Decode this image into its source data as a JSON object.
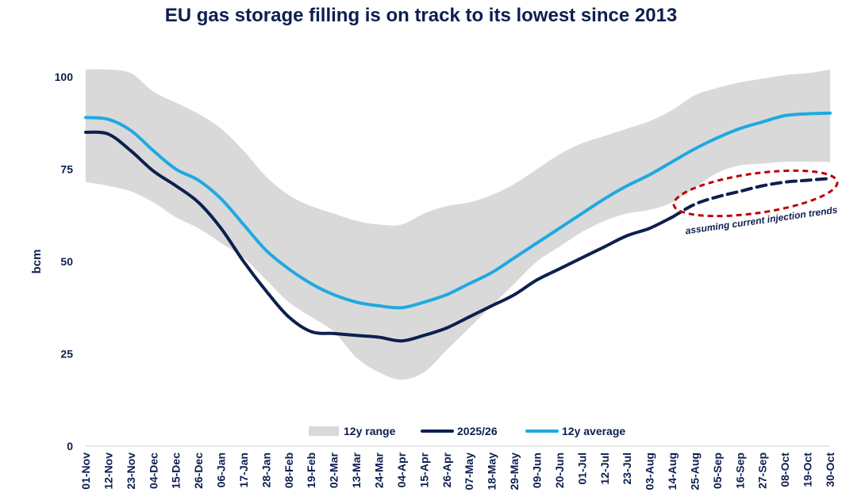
{
  "chart_data": {
    "type": "line",
    "title": "EU gas storage filling is on track to its lowest since 2013",
    "xlabel": "",
    "ylabel": "bcm",
    "ylim": [
      0,
      100
    ],
    "yticks": [
      "0",
      "25",
      "50",
      "75",
      "100"
    ],
    "categories": [
      "01-Nov",
      "12-Nov",
      "23-Nov",
      "04-Dec",
      "15-Dec",
      "26-Dec",
      "06-Jan",
      "17-Jan",
      "28-Jan",
      "08-Feb",
      "19-Feb",
      "02-Mar",
      "13-Mar",
      "24-Mar",
      "04-Apr",
      "15-Apr",
      "26-Apr",
      "07-May",
      "18-May",
      "29-May",
      "09-Jun",
      "20-Jun",
      "01-Jul",
      "12-Jul",
      "23-Jul",
      "03-Aug",
      "14-Aug",
      "25-Aug",
      "05-Sep",
      "16-Sep",
      "27-Sep",
      "08-Oct",
      "19-Oct",
      "30-Oct"
    ],
    "grid": false,
    "legend_position": "bottom",
    "legend": [
      "12y range",
      "2025/26",
      "12y average"
    ],
    "colors": {
      "range": "#d9d9d9",
      "current": "#0d1f4f",
      "average": "#1fa9e1",
      "ellipse": "#c00000"
    },
    "series": [
      {
        "name": "12y range",
        "type": "band",
        "low": [
          71.5,
          70.5,
          69,
          66,
          62,
          59,
          55,
          51,
          45,
          39,
          35,
          31,
          24,
          20,
          18,
          20,
          26,
          32,
          38,
          44,
          50,
          54,
          58,
          61,
          63,
          64,
          66,
          70,
          74,
          76,
          76.5,
          77,
          77,
          77
        ],
        "high": [
          102,
          102,
          101,
          96,
          93,
          90,
          86,
          80,
          73,
          68,
          65,
          63,
          61,
          60,
          60,
          63,
          65,
          66,
          68,
          71,
          75,
          79,
          82,
          84,
          86,
          88,
          91,
          95,
          97,
          98.5,
          99.5,
          100.5,
          101,
          102
        ]
      },
      {
        "name": "2025/26",
        "values": [
          85,
          84.5,
          80,
          74.5,
          70.5,
          66,
          59,
          50,
          42,
          35,
          31,
          30.5,
          30,
          29.5,
          28.5,
          30,
          32,
          35,
          38,
          41,
          45,
          48,
          51,
          54,
          57,
          59,
          62,
          null,
          null,
          null,
          null,
          null,
          null,
          null
        ]
      },
      {
        "name": "2025/26 projection",
        "style": "dashed",
        "values": [
          null,
          null,
          null,
          null,
          null,
          null,
          null,
          null,
          null,
          null,
          null,
          null,
          null,
          null,
          null,
          null,
          null,
          null,
          null,
          null,
          null,
          null,
          null,
          null,
          null,
          null,
          62,
          65.5,
          67.5,
          69,
          70.5,
          71.5,
          72,
          72.5
        ]
      },
      {
        "name": "12y average",
        "values": [
          89,
          88.5,
          85.5,
          80,
          75,
          72,
          67,
          60,
          53,
          48,
          44,
          41,
          39,
          38,
          37.5,
          39,
          41,
          44,
          47,
          51,
          55,
          59,
          63,
          67,
          70.5,
          73.5,
          77,
          80.5,
          83.5,
          86,
          87.8,
          89.5,
          90,
          90.2
        ]
      }
    ],
    "annotations": [
      "assuming current injection trends"
    ]
  }
}
